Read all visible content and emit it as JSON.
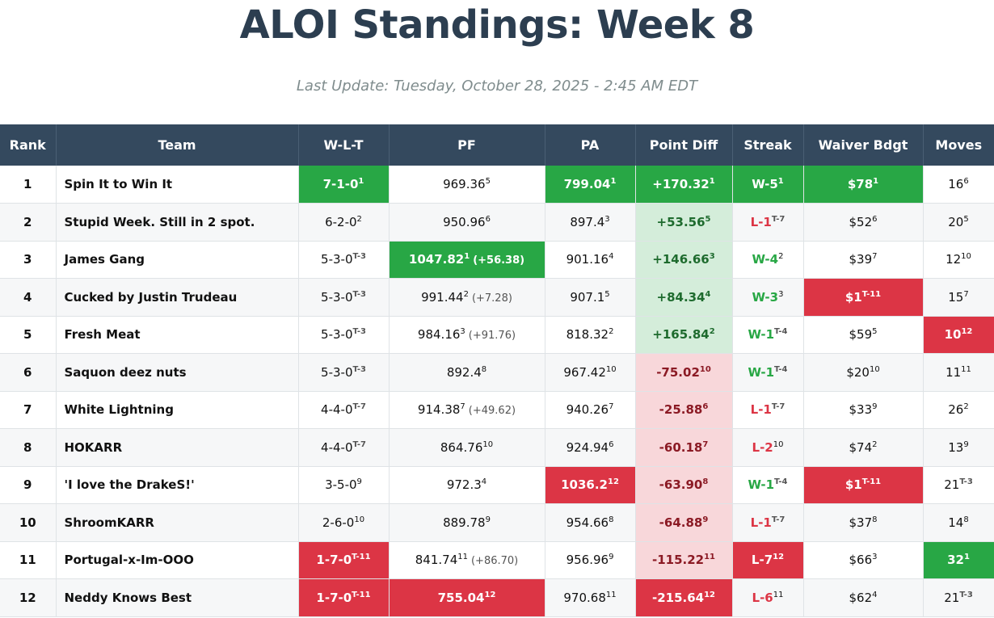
{
  "title": "ALOI Standings: Week 8",
  "subtitle": "Last Update: Tuesday, October 28, 2025 - 2:45 AM EDT",
  "colors": {
    "header_bg": "#34495e",
    "title": "#2c3e50",
    "good": "#28a745",
    "bad": "#dc3545",
    "pos_tint": "#d4edda",
    "neg_tint": "#f8d7da"
  },
  "columns": [
    "Rank",
    "Team",
    "W-L-T",
    "PF",
    "PA",
    "Point Diff",
    "Streak",
    "Waiver Bdgt",
    "Moves"
  ],
  "rows": [
    {
      "rank": "1",
      "team": "Spin It to Win It",
      "wlt": {
        "v": "7-1-0",
        "r": "1",
        "c": "good"
      },
      "pf": {
        "v": "969.36",
        "r": "5",
        "c": ""
      },
      "pa": {
        "v": "799.04",
        "r": "1",
        "c": "good"
      },
      "diff": {
        "v": "+170.32",
        "r": "1",
        "c": "good"
      },
      "streak": {
        "v": "W-5",
        "r": "1",
        "c": "good"
      },
      "waiver": {
        "v": "$78",
        "r": "1",
        "c": "good"
      },
      "moves": {
        "v": "16",
        "r": "6",
        "c": ""
      }
    },
    {
      "rank": "2",
      "team": "Stupid Week. Still in 2 spot.",
      "wlt": {
        "v": "6-2-0",
        "r": "2",
        "c": ""
      },
      "pf": {
        "v": "950.96",
        "r": "6",
        "c": ""
      },
      "pa": {
        "v": "897.4",
        "r": "3",
        "c": ""
      },
      "diff": {
        "v": "+53.56",
        "r": "5",
        "c": "pos"
      },
      "streak": {
        "v": "L-1",
        "r": "T-7",
        "c": "l"
      },
      "waiver": {
        "v": "$52",
        "r": "6",
        "c": ""
      },
      "moves": {
        "v": "20",
        "r": "5",
        "c": ""
      }
    },
    {
      "rank": "3",
      "team": "James Gang",
      "wlt": {
        "v": "5-3-0",
        "r": "T-3",
        "c": ""
      },
      "pf": {
        "v": "1047.82",
        "r": "1",
        "c": "good",
        "d": "(+56.38)"
      },
      "pa": {
        "v": "901.16",
        "r": "4",
        "c": ""
      },
      "diff": {
        "v": "+146.66",
        "r": "3",
        "c": "pos"
      },
      "streak": {
        "v": "W-4",
        "r": "2",
        "c": "w"
      },
      "waiver": {
        "v": "$39",
        "r": "7",
        "c": ""
      },
      "moves": {
        "v": "12",
        "r": "10",
        "c": ""
      }
    },
    {
      "rank": "4",
      "team": "Cucked by Justin Trudeau",
      "wlt": {
        "v": "5-3-0",
        "r": "T-3",
        "c": ""
      },
      "pf": {
        "v": "991.44",
        "r": "2",
        "c": "",
        "d": "(+7.28)"
      },
      "pa": {
        "v": "907.1",
        "r": "5",
        "c": ""
      },
      "diff": {
        "v": "+84.34",
        "r": "4",
        "c": "pos"
      },
      "streak": {
        "v": "W-3",
        "r": "3",
        "c": "w"
      },
      "waiver": {
        "v": "$1",
        "r": "T-11",
        "c": "bad"
      },
      "moves": {
        "v": "15",
        "r": "7",
        "c": ""
      }
    },
    {
      "rank": "5",
      "team": "Fresh Meat",
      "wlt": {
        "v": "5-3-0",
        "r": "T-3",
        "c": ""
      },
      "pf": {
        "v": "984.16",
        "r": "3",
        "c": "",
        "d": "(+91.76)"
      },
      "pa": {
        "v": "818.32",
        "r": "2",
        "c": ""
      },
      "diff": {
        "v": "+165.84",
        "r": "2",
        "c": "pos"
      },
      "streak": {
        "v": "W-1",
        "r": "T-4",
        "c": "w"
      },
      "waiver": {
        "v": "$59",
        "r": "5",
        "c": ""
      },
      "moves": {
        "v": "10",
        "r": "12",
        "c": "bad"
      }
    },
    {
      "rank": "6",
      "team": "Saquon deez nuts",
      "wlt": {
        "v": "5-3-0",
        "r": "T-3",
        "c": ""
      },
      "pf": {
        "v": "892.4",
        "r": "8",
        "c": ""
      },
      "pa": {
        "v": "967.42",
        "r": "10",
        "c": ""
      },
      "diff": {
        "v": "-75.02",
        "r": "10",
        "c": "neg"
      },
      "streak": {
        "v": "W-1",
        "r": "T-4",
        "c": "w"
      },
      "waiver": {
        "v": "$20",
        "r": "10",
        "c": ""
      },
      "moves": {
        "v": "11",
        "r": "11",
        "c": ""
      }
    },
    {
      "rank": "7",
      "team": "White Lightning",
      "wlt": {
        "v": "4-4-0",
        "r": "T-7",
        "c": ""
      },
      "pf": {
        "v": "914.38",
        "r": "7",
        "c": "",
        "d": "(+49.62)"
      },
      "pa": {
        "v": "940.26",
        "r": "7",
        "c": ""
      },
      "diff": {
        "v": "-25.88",
        "r": "6",
        "c": "neg"
      },
      "streak": {
        "v": "L-1",
        "r": "T-7",
        "c": "l"
      },
      "waiver": {
        "v": "$33",
        "r": "9",
        "c": ""
      },
      "moves": {
        "v": "26",
        "r": "2",
        "c": ""
      }
    },
    {
      "rank": "8",
      "team": "HOKARR",
      "wlt": {
        "v": "4-4-0",
        "r": "T-7",
        "c": ""
      },
      "pf": {
        "v": "864.76",
        "r": "10",
        "c": ""
      },
      "pa": {
        "v": "924.94",
        "r": "6",
        "c": ""
      },
      "diff": {
        "v": "-60.18",
        "r": "7",
        "c": "neg"
      },
      "streak": {
        "v": "L-2",
        "r": "10",
        "c": "l"
      },
      "waiver": {
        "v": "$74",
        "r": "2",
        "c": ""
      },
      "moves": {
        "v": "13",
        "r": "9",
        "c": ""
      }
    },
    {
      "rank": "9",
      "team": "'I love the DrakeS!'",
      "wlt": {
        "v": "3-5-0",
        "r": "9",
        "c": ""
      },
      "pf": {
        "v": "972.3",
        "r": "4",
        "c": ""
      },
      "pa": {
        "v": "1036.2",
        "r": "12",
        "c": "bad"
      },
      "diff": {
        "v": "-63.90",
        "r": "8",
        "c": "neg"
      },
      "streak": {
        "v": "W-1",
        "r": "T-4",
        "c": "w"
      },
      "waiver": {
        "v": "$1",
        "r": "T-11",
        "c": "bad"
      },
      "moves": {
        "v": "21",
        "r": "T-3",
        "c": ""
      }
    },
    {
      "rank": "10",
      "team": "ShroomKARR",
      "wlt": {
        "v": "2-6-0",
        "r": "10",
        "c": ""
      },
      "pf": {
        "v": "889.78",
        "r": "9",
        "c": ""
      },
      "pa": {
        "v": "954.66",
        "r": "8",
        "c": ""
      },
      "diff": {
        "v": "-64.88",
        "r": "9",
        "c": "neg"
      },
      "streak": {
        "v": "L-1",
        "r": "T-7",
        "c": "l"
      },
      "waiver": {
        "v": "$37",
        "r": "8",
        "c": ""
      },
      "moves": {
        "v": "14",
        "r": "8",
        "c": ""
      }
    },
    {
      "rank": "11",
      "team": "Portugal-x-Im-OOO",
      "wlt": {
        "v": "1-7-0",
        "r": "T-11",
        "c": "bad"
      },
      "pf": {
        "v": "841.74",
        "r": "11",
        "c": "",
        "d": "(+86.70)"
      },
      "pa": {
        "v": "956.96",
        "r": "9",
        "c": ""
      },
      "diff": {
        "v": "-115.22",
        "r": "11",
        "c": "neg"
      },
      "streak": {
        "v": "L-7",
        "r": "12",
        "c": "bad"
      },
      "waiver": {
        "v": "$66",
        "r": "3",
        "c": ""
      },
      "moves": {
        "v": "32",
        "r": "1",
        "c": "good"
      }
    },
    {
      "rank": "12",
      "team": "Neddy Knows Best",
      "wlt": {
        "v": "1-7-0",
        "r": "T-11",
        "c": "bad"
      },
      "pf": {
        "v": "755.04",
        "r": "12",
        "c": "bad"
      },
      "pa": {
        "v": "970.68",
        "r": "11",
        "c": ""
      },
      "diff": {
        "v": "-215.64",
        "r": "12",
        "c": "bad"
      },
      "streak": {
        "v": "L-6",
        "r": "11",
        "c": "l"
      },
      "waiver": {
        "v": "$62",
        "r": "4",
        "c": ""
      },
      "moves": {
        "v": "21",
        "r": "T-3",
        "c": ""
      }
    }
  ]
}
